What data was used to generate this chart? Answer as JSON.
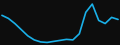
{
  "x": [
    0,
    1,
    2,
    3,
    4,
    5,
    6,
    7,
    8,
    9,
    10,
    11,
    12,
    13,
    14,
    15,
    16,
    17,
    18
  ],
  "y": [
    0.5,
    0.2,
    -0.3,
    -0.9,
    -1.5,
    -1.9,
    -2.1,
    -2.15,
    -2.05,
    -1.95,
    -1.85,
    -1.9,
    -1.3,
    0.8,
    1.6,
    0.0,
    -0.3,
    0.3,
    0.1
  ],
  "line_color": "#1ab0e8",
  "linewidth": 1.2,
  "background_color": "#0d0d0d"
}
